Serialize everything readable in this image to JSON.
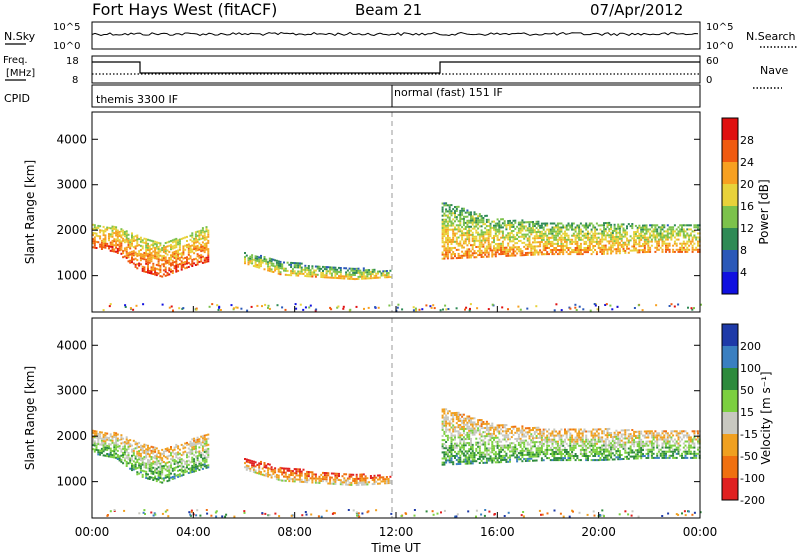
{
  "header": {
    "station": "Fort Hays West (fitACF)",
    "beam": "Beam 21",
    "date": "07/Apr/2012"
  },
  "noise_panel": {
    "left_label": "N.Sky",
    "right_label": "N.Search",
    "left_ticks": [
      "10^5",
      "10^0"
    ],
    "right_ticks": [
      "10^5",
      "10^0"
    ]
  },
  "freq_panel": {
    "left_label_line1": "Freq.",
    "left_label_line2": "[MHz]",
    "right_label": "Nave",
    "left_ticks": [
      "18",
      "8"
    ],
    "right_ticks": [
      "60",
      "0"
    ]
  },
  "cpid_panel": {
    "label": "CPID",
    "programs": [
      {
        "name": "themis 3300 IF",
        "start_hour": 0
      },
      {
        "name": "normal (fast) 151 IF",
        "start_hour": 12
      }
    ]
  },
  "time_axis": {
    "label": "Time UT",
    "ticks": [
      "00:00",
      "04:00",
      "08:00",
      "12:00",
      "16:00",
      "20:00",
      "00:00"
    ]
  },
  "chart_data": [
    {
      "type": "heatmap",
      "name": "power",
      "ylabel": "Slant Range [km]",
      "yticks": [
        1000,
        2000,
        3000,
        4000
      ],
      "ylim": [
        200,
        4600
      ],
      "xlim_hours": [
        0,
        24
      ],
      "colorbar": {
        "label": "Power [dB]",
        "ticks": [
          "28",
          "24",
          "20",
          "16",
          "12",
          "8",
          "4"
        ],
        "colors": [
          "#e01010",
          "#f05a10",
          "#f7a020",
          "#e8d23a",
          "#7cc24b",
          "#2f8a55",
          "#2a58b8",
          "#1010e0"
        ]
      },
      "echo_regions": [
        {
          "t0": 0.0,
          "t1": 4.6,
          "r_low": [
            1600,
            1500,
            1100,
            950,
            1150,
            1300
          ],
          "r_high": [
            2100,
            2050,
            1850,
            1700,
            1850,
            2100
          ],
          "level": 0.7
        },
        {
          "t0": 6.0,
          "t1": 11.8,
          "r_low": [
            1250,
            1000,
            950,
            900,
            950
          ],
          "r_high": [
            1500,
            1300,
            1200,
            1150,
            1100
          ],
          "level": 0.45
        },
        {
          "t0": 13.8,
          "t1": 24.0,
          "r_low": [
            1350,
            1400,
            1450,
            1450,
            1500,
            1500
          ],
          "r_high": [
            2600,
            2250,
            2150,
            2150,
            2100,
            2100
          ],
          "level": 0.55
        }
      ]
    },
    {
      "type": "heatmap",
      "name": "velocity",
      "ylabel": "Slant Range [km]",
      "yticks": [
        1000,
        2000,
        3000,
        4000
      ],
      "ylim": [
        200,
        4600
      ],
      "xlim_hours": [
        0,
        24
      ],
      "colorbar": {
        "label": "Velocity [m s⁻¹]",
        "ticks": [
          "200",
          "100",
          "50",
          "15",
          "-15",
          "-50",
          "-100",
          "-200"
        ],
        "colors": [
          "#1e3aa8",
          "#3a7fc0",
          "#2d8a3c",
          "#7cd040",
          "#c8c8c0",
          "#f0a020",
          "#f07010",
          "#e02020"
        ]
      },
      "echo_regions": [
        {
          "t0": 0.0,
          "t1": 4.6,
          "r_low": [
            1600,
            1500,
            1100,
            950,
            1150,
            1300
          ],
          "r_high": [
            2100,
            2050,
            1850,
            1700,
            1850,
            2100
          ],
          "level": 0.5
        },
        {
          "t0": 6.0,
          "t1": 11.8,
          "r_low": [
            1250,
            1000,
            950,
            900,
            950
          ],
          "r_high": [
            1500,
            1300,
            1200,
            1150,
            1100
          ],
          "level": 0.2
        },
        {
          "t0": 13.8,
          "t1": 24.0,
          "r_low": [
            1350,
            1400,
            1450,
            1450,
            1500,
            1500
          ],
          "r_high": [
            2600,
            2250,
            2150,
            2150,
            2100,
            2100
          ],
          "level": 0.5
        }
      ]
    }
  ]
}
